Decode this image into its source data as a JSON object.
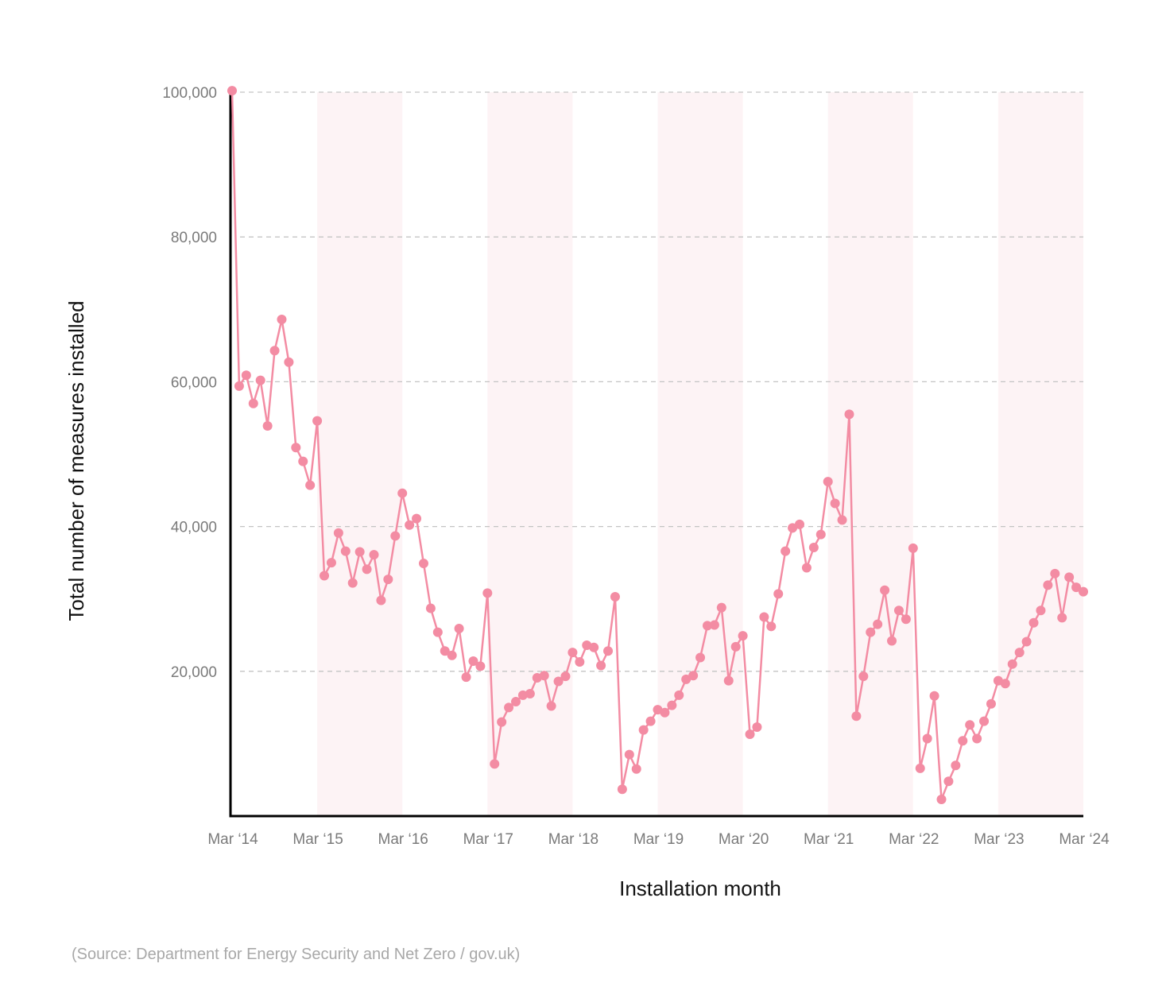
{
  "chart_data": {
    "type": "line",
    "title": "",
    "xlabel": "Installation month",
    "ylabel": "Total number of measures installed",
    "ylim": [
      0,
      100000
    ],
    "y_ticks": [
      20000,
      40000,
      60000,
      80000,
      100000
    ],
    "y_tick_labels": [
      "20,000",
      "40,000",
      "60,000",
      "80,000",
      "100,000"
    ],
    "x_tick_labels": [
      "Mar ‘14",
      "Mar ‘15",
      "Mar ‘16",
      "Mar ‘17",
      "Mar ‘18",
      "Mar ‘19",
      "Mar ‘20",
      "Mar ‘21",
      "Mar ‘22",
      "Mar ‘23",
      "Mar ‘24"
    ],
    "x_tick_index": [
      0,
      12,
      24,
      36,
      48,
      60,
      72,
      84,
      96,
      108,
      120
    ],
    "shaded_bands": [
      [
        12,
        24
      ],
      [
        36,
        48
      ],
      [
        60,
        72
      ],
      [
        84,
        96
      ],
      [
        108,
        120
      ]
    ],
    "grid": true,
    "colors": {
      "line": "#f38ca3",
      "band": "#fdf3f5",
      "grid": "#c4c4c4",
      "axis": "#000000"
    },
    "series": [
      {
        "name": "Measures installed",
        "values": [
          100200,
          59400,
          60900,
          57000,
          60200,
          53900,
          64300,
          68600,
          62700,
          50900,
          49000,
          45700,
          54600,
          33200,
          35000,
          39100,
          36600,
          32200,
          36500,
          34100,
          36100,
          29800,
          32700,
          38700,
          44600,
          40200,
          41100,
          34900,
          28700,
          25400,
          22800,
          22200,
          25900,
          19200,
          21400,
          20700,
          30800,
          7200,
          13000,
          15000,
          15800,
          16700,
          16900,
          19100,
          19400,
          15200,
          18600,
          19300,
          22600,
          21300,
          23600,
          23300,
          20800,
          22800,
          30300,
          3700,
          8500,
          6500,
          11900,
          13100,
          14700,
          14300,
          15300,
          16700,
          18900,
          19400,
          21900,
          26300,
          26400,
          28800,
          18700,
          23400,
          24900,
          11300,
          12300,
          27500,
          26200,
          30700,
          36600,
          39800,
          40300,
          34300,
          37100,
          38900,
          46200,
          43200,
          40900,
          55500,
          13800,
          19300,
          25400,
          26500,
          31200,
          24200,
          28400,
          27200,
          37000,
          6600,
          10700,
          16600,
          2300,
          4800,
          7000,
          10400,
          12600,
          10700,
          13100,
          15500,
          18700,
          18300,
          21000,
          22600,
          24100,
          26700,
          28400,
          31900,
          33500,
          27400,
          33000,
          31600,
          31000
        ]
      }
    ]
  },
  "source": "(Source: Department for Energy Security and Net Zero / gov.uk)"
}
